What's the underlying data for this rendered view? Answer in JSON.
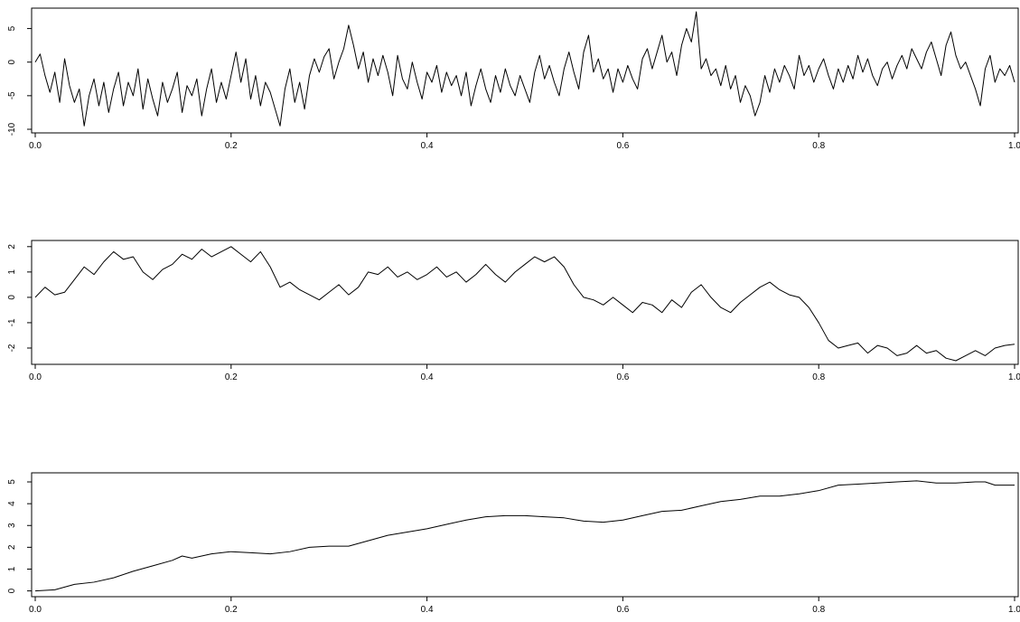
{
  "chart_data": [
    {
      "type": "line",
      "title": "",
      "xlabel": "",
      "ylabel": "",
      "xlim": [
        0,
        1
      ],
      "ylim": [
        -10,
        7.5
      ],
      "grid": false,
      "x_ticks": [
        0,
        0.2,
        0.4,
        0.6,
        0.8,
        1
      ],
      "x_tick_labels": [
        "0.0",
        "0.2",
        "0.4",
        "0.6",
        "0.8",
        "1.0"
      ],
      "y_ticks": [
        -10,
        -5,
        0,
        5
      ],
      "y_tick_labels": [
        "-10",
        "-5",
        "0",
        "5"
      ],
      "series": [
        {
          "x": [
            0,
            0.005,
            0.01,
            0.015,
            0.02,
            0.025,
            0.03,
            0.035,
            0.04,
            0.045,
            0.05,
            0.055,
            0.06,
            0.065,
            0.07,
            0.075,
            0.08,
            0.085,
            0.09,
            0.095,
            0.1,
            0.105,
            0.11,
            0.115,
            0.12,
            0.125,
            0.13,
            0.135,
            0.14,
            0.145,
            0.15,
            0.155,
            0.16,
            0.165,
            0.17,
            0.175,
            0.18,
            0.185,
            0.19,
            0.195,
            0.2,
            0.205,
            0.21,
            0.215,
            0.22,
            0.225,
            0.23,
            0.235,
            0.24,
            0.245,
            0.25,
            0.255,
            0.26,
            0.265,
            0.27,
            0.275,
            0.28,
            0.285,
            0.29,
            0.295,
            0.3,
            0.305,
            0.31,
            0.315,
            0.32,
            0.325,
            0.33,
            0.335,
            0.34,
            0.345,
            0.35,
            0.355,
            0.36,
            0.365,
            0.37,
            0.375,
            0.38,
            0.385,
            0.39,
            0.395,
            0.4,
            0.405,
            0.41,
            0.415,
            0.42,
            0.425,
            0.43,
            0.435,
            0.44,
            0.445,
            0.45,
            0.455,
            0.46,
            0.465,
            0.47,
            0.475,
            0.48,
            0.485,
            0.49,
            0.495,
            0.5,
            0.505,
            0.51,
            0.515,
            0.52,
            0.525,
            0.53,
            0.535,
            0.54,
            0.545,
            0.55,
            0.555,
            0.56,
            0.565,
            0.57,
            0.575,
            0.58,
            0.585,
            0.59,
            0.595,
            0.6,
            0.605,
            0.61,
            0.615,
            0.62,
            0.625,
            0.63,
            0.635,
            0.64,
            0.645,
            0.65,
            0.655,
            0.66,
            0.665,
            0.67,
            0.675,
            0.68,
            0.685,
            0.69,
            0.695,
            0.7,
            0.705,
            0.71,
            0.715,
            0.72,
            0.725,
            0.73,
            0.735,
            0.74,
            0.745,
            0.75,
            0.755,
            0.76,
            0.765,
            0.77,
            0.775,
            0.78,
            0.785,
            0.79,
            0.795,
            0.8,
            0.805,
            0.81,
            0.815,
            0.82,
            0.825,
            0.83,
            0.835,
            0.84,
            0.845,
            0.85,
            0.855,
            0.86,
            0.865,
            0.87,
            0.875,
            0.88,
            0.885,
            0.89,
            0.895,
            0.9,
            0.905,
            0.91,
            0.915,
            0.92,
            0.925,
            0.93,
            0.935,
            0.94,
            0.945,
            0.95,
            0.955,
            0.96,
            0.965,
            0.97,
            0.975,
            0.98,
            0.985,
            0.99,
            0.995,
            1
          ],
          "y": [
            0,
            1.2,
            -2,
            -4.5,
            -1.5,
            -6,
            0.5,
            -3.5,
            -6,
            -4,
            -9.5,
            -5,
            -2.5,
            -6.5,
            -3,
            -7.5,
            -4,
            -1.5,
            -6.5,
            -3,
            -5,
            -1,
            -7,
            -2.5,
            -5.5,
            -8,
            -3,
            -6,
            -4,
            -1.5,
            -7.5,
            -3.5,
            -5,
            -2.5,
            -8,
            -4,
            -1,
            -6,
            -3,
            -5.5,
            -2,
            1.5,
            -3,
            0.5,
            -5.5,
            -2,
            -6.5,
            -3,
            -4.5,
            -7,
            -9.5,
            -4,
            -1,
            -6,
            -3,
            -7,
            -2,
            0.5,
            -1.5,
            0.8,
            2,
            -2.5,
            0,
            2,
            5.5,
            2.5,
            -1,
            1.5,
            -3,
            0.5,
            -2,
            1,
            -1.5,
            -5,
            1,
            -2.5,
            -4,
            0,
            -3,
            -5.5,
            -1.5,
            -3,
            -0.5,
            -4.5,
            -1.5,
            -3.5,
            -2,
            -5,
            -1.5,
            -6.5,
            -3.5,
            -1,
            -4,
            -6,
            -2,
            -4.5,
            -1,
            -3.5,
            -5,
            -2,
            -4,
            -6,
            -1.5,
            1,
            -2.5,
            -0.5,
            -3,
            -5,
            -1,
            1.5,
            -1.5,
            -4,
            1.5,
            4,
            -1.5,
            0.5,
            -2.5,
            -1,
            -4.5,
            -1,
            -3,
            -0.5,
            -2.5,
            -4,
            0.5,
            2,
            -1,
            1.5,
            4,
            0,
            1.5,
            -2,
            2.5,
            5,
            3,
            7.5,
            -1,
            0.5,
            -2,
            -1,
            -3.5,
            -0.5,
            -4,
            -2,
            -6,
            -3.5,
            -5,
            -8,
            -6,
            -2,
            -4.5,
            -1,
            -3,
            -0.5,
            -2,
            -4,
            1,
            -2,
            -0.5,
            -3,
            -1,
            0.5,
            -2,
            -4,
            -1,
            -3,
            -0.5,
            -2.5,
            1,
            -1.5,
            0.5,
            -2,
            -3.5,
            -1,
            0,
            -2.5,
            -0.5,
            1,
            -1,
            2,
            0.5,
            -1,
            1.5,
            3,
            0.5,
            -2,
            2.5,
            4.5,
            1,
            -1,
            0,
            -2,
            -4,
            -6.5,
            -1,
            1,
            -3,
            -1,
            -2,
            -0.5,
            -3
          ]
        }
      ]
    },
    {
      "type": "line",
      "title": "",
      "xlabel": "",
      "ylabel": "",
      "xlim": [
        0,
        1
      ],
      "ylim": [
        -2.5,
        2.1
      ],
      "grid": false,
      "x_ticks": [
        0,
        0.2,
        0.4,
        0.6,
        0.8,
        1
      ],
      "x_tick_labels": [
        "0.0",
        "0.2",
        "0.4",
        "0.6",
        "0.8",
        "1.0"
      ],
      "y_ticks": [
        -2,
        -1,
        0,
        1,
        2
      ],
      "y_tick_labels": [
        "-2",
        "-1",
        "0",
        "1",
        "2"
      ],
      "series": [
        {
          "x": [
            0,
            0.01,
            0.02,
            0.03,
            0.04,
            0.05,
            0.06,
            0.07,
            0.08,
            0.09,
            0.1,
            0.11,
            0.12,
            0.13,
            0.14,
            0.15,
            0.16,
            0.17,
            0.18,
            0.19,
            0.2,
            0.21,
            0.22,
            0.23,
            0.24,
            0.25,
            0.26,
            0.27,
            0.28,
            0.29,
            0.3,
            0.31,
            0.32,
            0.33,
            0.34,
            0.35,
            0.36,
            0.37,
            0.38,
            0.39,
            0.4,
            0.41,
            0.42,
            0.43,
            0.44,
            0.45,
            0.46,
            0.47,
            0.48,
            0.49,
            0.5,
            0.51,
            0.52,
            0.53,
            0.54,
            0.55,
            0.56,
            0.57,
            0.58,
            0.59,
            0.6,
            0.61,
            0.62,
            0.63,
            0.64,
            0.65,
            0.66,
            0.67,
            0.68,
            0.69,
            0.7,
            0.71,
            0.72,
            0.73,
            0.74,
            0.75,
            0.76,
            0.77,
            0.78,
            0.79,
            0.8,
            0.81,
            0.82,
            0.83,
            0.84,
            0.85,
            0.86,
            0.87,
            0.88,
            0.89,
            0.9,
            0.91,
            0.92,
            0.93,
            0.94,
            0.95,
            0.96,
            0.97,
            0.98,
            0.99,
            1
          ],
          "y": [
            0,
            0.4,
            0.1,
            0.2,
            0.7,
            1.2,
            0.9,
            1.4,
            1.8,
            1.5,
            1.6,
            1.0,
            0.7,
            1.1,
            1.3,
            1.7,
            1.5,
            1.9,
            1.6,
            1.8,
            2.0,
            1.7,
            1.4,
            1.8,
            1.2,
            0.4,
            0.6,
            0.3,
            0.1,
            -0.1,
            0.2,
            0.5,
            0.1,
            0.4,
            1.0,
            0.9,
            1.2,
            0.8,
            1.0,
            0.7,
            0.9,
            1.2,
            0.8,
            1.0,
            0.6,
            0.9,
            1.3,
            0.9,
            0.6,
            1.0,
            1.3,
            1.6,
            1.4,
            1.6,
            1.2,
            0.5,
            0.0,
            -0.1,
            -0.3,
            0.0,
            -0.3,
            -0.6,
            -0.2,
            -0.3,
            -0.6,
            -0.1,
            -0.4,
            0.2,
            0.5,
            0.0,
            -0.4,
            -0.6,
            -0.2,
            0.1,
            0.4,
            0.6,
            0.3,
            0.1,
            0.0,
            -0.4,
            -1.0,
            -1.7,
            -2.0,
            -1.9,
            -1.8,
            -2.2,
            -1.9,
            -2.0,
            -2.3,
            -2.2,
            -1.9,
            -2.2,
            -2.1,
            -2.4,
            -2.5,
            -2.3,
            -2.1,
            -2.3,
            -2.0,
            -1.9,
            -1.85
          ]
        }
      ]
    },
    {
      "type": "line",
      "title": "",
      "xlabel": "",
      "ylabel": "",
      "xlim": [
        0,
        1
      ],
      "ylim": [
        -0.1,
        5.25
      ],
      "grid": false,
      "x_ticks": [
        0,
        0.2,
        0.4,
        0.6,
        0.8,
        1
      ],
      "x_tick_labels": [
        "0.0",
        "0.2",
        "0.4",
        "0.6",
        "0.8",
        "1.0"
      ],
      "y_ticks": [
        0,
        1,
        2,
        3,
        4,
        5
      ],
      "y_tick_labels": [
        "0",
        "1",
        "2",
        "3",
        "4",
        "5"
      ],
      "series": [
        {
          "x": [
            0,
            0.02,
            0.04,
            0.06,
            0.08,
            0.1,
            0.12,
            0.14,
            0.15,
            0.16,
            0.18,
            0.2,
            0.22,
            0.24,
            0.26,
            0.28,
            0.3,
            0.32,
            0.34,
            0.36,
            0.38,
            0.4,
            0.42,
            0.44,
            0.46,
            0.48,
            0.5,
            0.52,
            0.54,
            0.56,
            0.58,
            0.6,
            0.62,
            0.64,
            0.66,
            0.68,
            0.7,
            0.72,
            0.74,
            0.76,
            0.78,
            0.8,
            0.82,
            0.84,
            0.86,
            0.88,
            0.9,
            0.92,
            0.94,
            0.96,
            0.97,
            0.98,
            1
          ],
          "y": [
            0,
            0.05,
            0.3,
            0.4,
            0.6,
            0.9,
            1.15,
            1.4,
            1.6,
            1.5,
            1.7,
            1.8,
            1.75,
            1.7,
            1.8,
            2.0,
            2.05,
            2.05,
            2.3,
            2.55,
            2.7,
            2.85,
            3.05,
            3.25,
            3.4,
            3.45,
            3.45,
            3.4,
            3.35,
            3.2,
            3.15,
            3.25,
            3.45,
            3.65,
            3.7,
            3.9,
            4.1,
            4.2,
            4.35,
            4.35,
            4.45,
            4.6,
            4.85,
            4.9,
            4.95,
            5.0,
            5.05,
            4.95,
            4.95,
            5.0,
            5.0,
            4.85,
            4.85
          ]
        }
      ]
    }
  ]
}
